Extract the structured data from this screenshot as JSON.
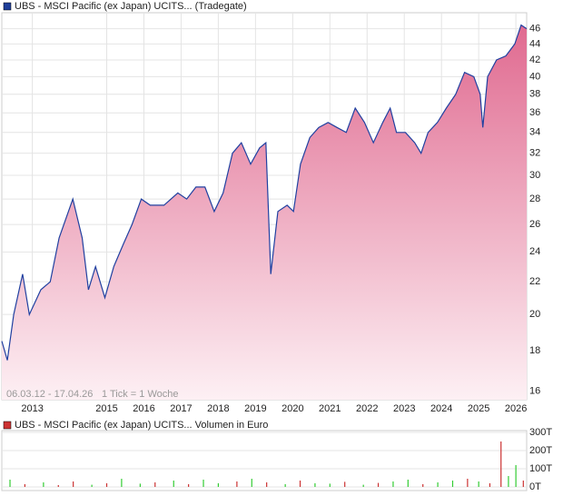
{
  "chart_data": [
    {
      "type": "area",
      "title": "UBS - MSCI Pacific (ex Japan) UCITS... (Tradegate)",
      "legend_color": "#1f3f99",
      "caption": "06.03.12 - 17.04.26",
      "tick_note": "1 Tick = 1 Woche",
      "x": [
        2012.18,
        2012.33,
        2012.5,
        2012.74,
        2012.92,
        2013.23,
        2013.48,
        2013.72,
        2014.09,
        2014.34,
        2014.51,
        2014.7,
        2014.95,
        2015.19,
        2015.44,
        2015.68,
        2015.93,
        2016.17,
        2016.54,
        2016.91,
        2017.15,
        2017.4,
        2017.64,
        2017.89,
        2018.13,
        2018.38,
        2018.62,
        2018.87,
        2019.11,
        2019.28,
        2019.41,
        2019.6,
        2019.85,
        2020.02,
        2020.21,
        2020.46,
        2020.7,
        2020.95,
        2021.19,
        2021.44,
        2021.68,
        2021.93,
        2022.17,
        2022.42,
        2022.62,
        2022.79,
        2023.03,
        2023.28,
        2023.45,
        2023.64,
        2023.89,
        2024.13,
        2024.38,
        2024.62,
        2024.87,
        2025.04,
        2025.11,
        2025.24,
        2025.48,
        2025.73,
        2025.97,
        2026.14,
        2026.29
      ],
      "series": [
        {
          "name": "UBS - MSCI Pacific (ex Japan) UCITS...",
          "color": "#2040a0",
          "values": [
            18.5,
            17.5,
            20,
            22.5,
            20,
            21.5,
            22,
            25,
            28,
            25,
            21.5,
            23,
            21,
            23,
            24.5,
            26,
            28,
            27.5,
            27.5,
            28.5,
            28,
            29,
            29,
            27,
            28.5,
            32,
            33,
            31,
            32.5,
            33,
            22.5,
            27,
            27.5,
            27,
            31,
            33.5,
            34.5,
            35,
            34.5,
            34,
            36.5,
            35,
            33,
            35,
            36.5,
            34,
            34,
            33,
            32,
            34,
            35,
            36.5,
            38,
            40.5,
            40,
            38,
            34.5,
            40,
            42,
            42.5,
            44,
            46.5,
            46
          ]
        }
      ],
      "fill_top": "#e06a90",
      "fill_bottom": "#fdf0f4",
      "log_scale": true,
      "grid": true,
      "xlim": [
        2012.18,
        2026.29
      ],
      "xticks": [
        2013,
        2015,
        2016,
        2017,
        2018,
        2019,
        2020,
        2021,
        2022,
        2023,
        2024,
        2025,
        2026
      ],
      "ylim": [
        15.6,
        48.2
      ],
      "yticks": [
        16,
        18,
        20,
        22,
        24,
        26,
        28,
        30,
        32,
        34,
        36,
        38,
        40,
        42,
        44,
        46
      ]
    },
    {
      "type": "bar",
      "title": "UBS - MSCI Pacific (ex Japan) UCITS... Volumen in Euro",
      "legend_color": "#cc3333",
      "x": [
        2012.4,
        2012.8,
        2013.3,
        2013.7,
        2014.1,
        2014.6,
        2015.0,
        2015.4,
        2015.9,
        2016.3,
        2016.8,
        2017.2,
        2017.6,
        2018.0,
        2018.5,
        2018.9,
        2019.3,
        2019.8,
        2020.2,
        2020.6,
        2021.0,
        2021.4,
        2021.9,
        2022.3,
        2022.7,
        2023.1,
        2023.5,
        2023.9,
        2024.3,
        2024.7,
        2025.0,
        2025.3,
        2025.6,
        2025.8,
        2026.0,
        2026.2
      ],
      "values": [
        40000,
        15000,
        25000,
        10000,
        30000,
        12000,
        20000,
        45000,
        18000,
        25000,
        35000,
        15000,
        40000,
        20000,
        30000,
        45000,
        25000,
        15000,
        35000,
        20000,
        18000,
        28000,
        12000,
        22000,
        30000,
        40000,
        15000,
        25000,
        35000,
        45000,
        30000,
        20000,
        250000,
        60000,
        120000,
        35000
      ],
      "bar_colors": [
        "#33cc33",
        "#cc3333",
        "#33cc33",
        "#cc3333",
        "#cc3333",
        "#33cc33",
        "#cc3333",
        "#33cc33",
        "#33cc33",
        "#cc3333",
        "#33cc33",
        "#cc3333",
        "#33cc33",
        "#33cc33",
        "#cc3333",
        "#33cc33",
        "#cc3333",
        "#33cc33",
        "#cc3333",
        "#33cc33",
        "#33cc33",
        "#cc3333",
        "#33cc33",
        "#cc3333",
        "#33cc33",
        "#33cc33",
        "#cc3333",
        "#33cc33",
        "#33cc33",
        "#cc3333",
        "#33cc33",
        "#cc3333",
        "#cc3333",
        "#33cc33",
        "#33cc33",
        "#cc3333"
      ],
      "grid": true,
      "xlim": [
        2012.18,
        2026.29
      ],
      "ylim": [
        0,
        300000
      ],
      "yticks": [
        {
          "value": 0,
          "label": "0T"
        },
        {
          "value": 100000,
          "label": "100T"
        },
        {
          "value": 200000,
          "label": "200T"
        },
        {
          "value": 300000,
          "label": "300T"
        }
      ]
    }
  ]
}
